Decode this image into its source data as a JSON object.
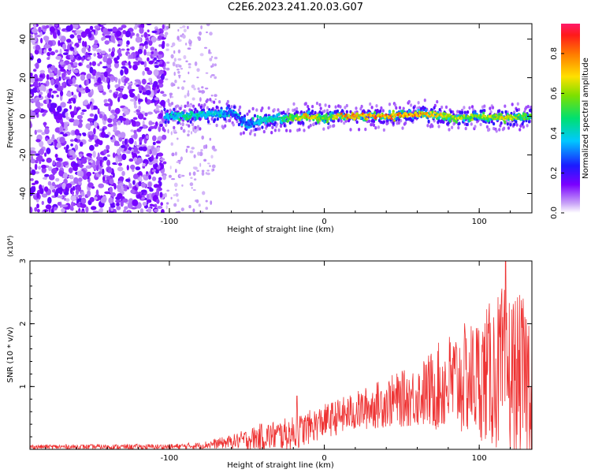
{
  "title": "C2E6.2023.241.20.03.G07",
  "chart_data": [
    {
      "type": "heatmap",
      "xlabel": "Height of straight line (km)",
      "ylabel": "Frequency (Hz)",
      "xlim": [
        -190,
        134
      ],
      "ylim": [
        -50,
        48
      ],
      "x_ticks": [
        -100,
        0,
        100
      ],
      "y_ticks": [
        -40,
        -20,
        0,
        20,
        40
      ],
      "colorbar": {
        "label": "Normalized spectral amplitude",
        "range": [
          0.0,
          0.95
        ],
        "ticks": [
          "0.0",
          "0.2",
          "0.4",
          "0.6",
          "0.8"
        ]
      },
      "signal_band": {
        "x_start": -103,
        "x_end": 134,
        "center_frequency_hz": 0,
        "points": [
          {
            "x": -100,
            "f": 0,
            "amp": 0.4
          },
          {
            "x": -90,
            "f": 0,
            "amp": 0.5
          },
          {
            "x": -75,
            "f": 1,
            "amp": 0.45
          },
          {
            "x": -60,
            "f": 2,
            "amp": 0.35
          },
          {
            "x": -50,
            "f": -4,
            "amp": 0.3
          },
          {
            "x": -40,
            "f": -2,
            "amp": 0.45
          },
          {
            "x": -25,
            "f": -1,
            "amp": 0.55
          },
          {
            "x": -10,
            "f": 0,
            "amp": 0.85
          },
          {
            "x": 0,
            "f": -1,
            "amp": 0.6
          },
          {
            "x": 10,
            "f": 0,
            "amp": 0.85
          },
          {
            "x": 25,
            "f": 0,
            "amp": 0.85
          },
          {
            "x": 40,
            "f": 0,
            "amp": 0.9
          },
          {
            "x": 55,
            "f": 1,
            "amp": 0.88
          },
          {
            "x": 70,
            "f": 1,
            "amp": 0.8
          },
          {
            "x": 85,
            "f": -1,
            "amp": 0.7
          },
          {
            "x": 100,
            "f": 0,
            "amp": 0.65
          },
          {
            "x": 115,
            "f": -1,
            "amp": 0.75
          },
          {
            "x": 130,
            "f": 0,
            "amp": 0.6
          }
        ],
        "noise_region_x": [
          -190,
          -103
        ],
        "noise_sparse_x": [
          -103,
          -70
        ]
      }
    },
    {
      "type": "line",
      "xlabel": "Height of straight line (km)",
      "ylabel": "SNR (10 * v/v)",
      "y_multiplier": "(x10⁴)",
      "xlim": [
        -190,
        134
      ],
      "ylim": [
        0,
        3
      ],
      "x_ticks": [
        -100,
        0,
        100
      ],
      "y_ticks": [
        1,
        2,
        3
      ],
      "color": "#ee3333",
      "envelope": [
        {
          "x": -190,
          "mean": 0.04,
          "spread": 0.04
        },
        {
          "x": -100,
          "mean": 0.04,
          "spread": 0.05
        },
        {
          "x": -80,
          "mean": 0.06,
          "spread": 0.06
        },
        {
          "x": -60,
          "mean": 0.12,
          "spread": 0.12
        },
        {
          "x": -40,
          "mean": 0.2,
          "spread": 0.25
        },
        {
          "x": -20,
          "mean": 0.25,
          "spread": 0.3
        },
        {
          "x": 0,
          "mean": 0.45,
          "spread": 0.3
        },
        {
          "x": 20,
          "mean": 0.6,
          "spread": 0.35
        },
        {
          "x": 40,
          "mean": 0.75,
          "spread": 0.45
        },
        {
          "x": 60,
          "mean": 0.85,
          "spread": 0.55
        },
        {
          "x": 80,
          "mean": 1.05,
          "spread": 0.9
        },
        {
          "x": 100,
          "mean": 1.15,
          "spread": 1.1
        },
        {
          "x": 115,
          "mean": 1.25,
          "spread": 1.5
        },
        {
          "x": 134,
          "mean": 1.1,
          "spread": 1.4
        }
      ],
      "peak": {
        "x": 117,
        "y": 3.0
      }
    }
  ]
}
